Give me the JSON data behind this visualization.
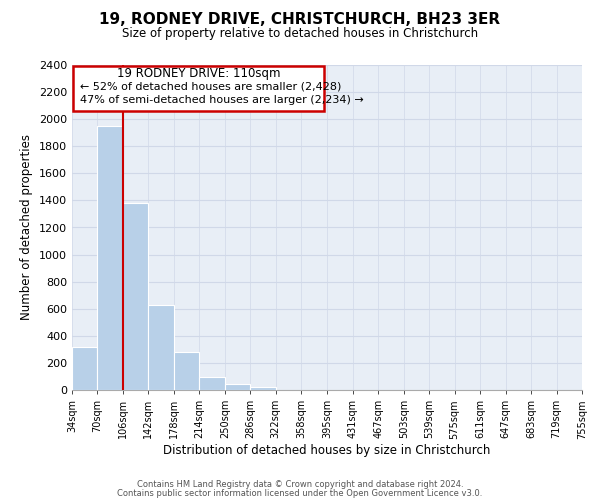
{
  "title": "19, RODNEY DRIVE, CHRISTCHURCH, BH23 3ER",
  "subtitle": "Size of property relative to detached houses in Christchurch",
  "xlabel": "Distribution of detached houses by size in Christchurch",
  "ylabel": "Number of detached properties",
  "bar_color": "#b8d0e8",
  "property_line_color": "#cc0000",
  "property_line_x": 106,
  "bin_edges": [
    34,
    70,
    106,
    142,
    178,
    214,
    250,
    286,
    322,
    358,
    395,
    431,
    467,
    503,
    539,
    575,
    611,
    647,
    683,
    719,
    755
  ],
  "bin_counts": [
    320,
    1950,
    1380,
    630,
    280,
    95,
    45,
    20,
    0,
    0,
    0,
    0,
    0,
    0,
    0,
    0,
    0,
    0,
    0,
    0
  ],
  "ylim": [
    0,
    2400
  ],
  "yticks": [
    0,
    200,
    400,
    600,
    800,
    1000,
    1200,
    1400,
    1600,
    1800,
    2000,
    2200,
    2400
  ],
  "annotation_line1": "19 RODNEY DRIVE: 110sqm",
  "annotation_line2": "← 52% of detached houses are smaller (2,428)",
  "annotation_line3": "47% of semi-detached houses are larger (2,234) →",
  "footer_line1": "Contains HM Land Registry data © Crown copyright and database right 2024.",
  "footer_line2": "Contains public sector information licensed under the Open Government Licence v3.0.",
  "background_color": "#ffffff",
  "grid_color": "#d0d8e8",
  "tick_labels": [
    "34sqm",
    "70sqm",
    "106sqm",
    "142sqm",
    "178sqm",
    "214sqm",
    "250sqm",
    "286sqm",
    "322sqm",
    "358sqm",
    "395sqm",
    "431sqm",
    "467sqm",
    "503sqm",
    "539sqm",
    "575sqm",
    "611sqm",
    "647sqm",
    "683sqm",
    "719sqm",
    "755sqm"
  ]
}
